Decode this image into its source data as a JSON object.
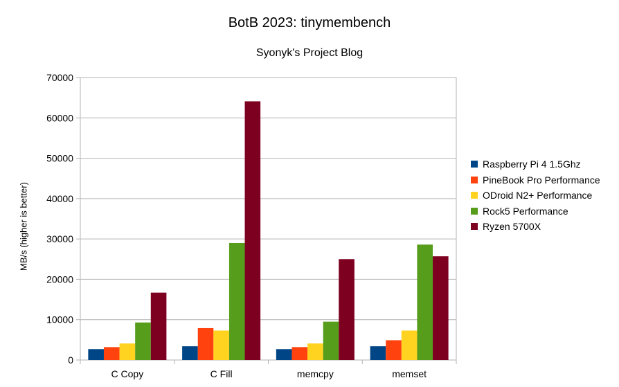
{
  "chart_data": {
    "type": "bar",
    "title": "BotB 2023: tinymembench",
    "subtitle": "Syonyk's Project Blog",
    "xlabel": "",
    "ylabel": "MB/s (higher is better)",
    "ylim": [
      0,
      70000
    ],
    "yticks": [
      0,
      10000,
      20000,
      30000,
      40000,
      50000,
      60000,
      70000
    ],
    "grid": true,
    "legend_position": "right",
    "categories": [
      "C Copy",
      "C Fill",
      "memcpy",
      "memset"
    ],
    "series": [
      {
        "name": "Raspberry Pi 4 1.5Ghz",
        "color": "#004586",
        "values": [
          2700,
          3400,
          2700,
          3400
        ]
      },
      {
        "name": "PineBook Pro Performance",
        "color": "#ff420e",
        "values": [
          3200,
          7900,
          3200,
          4900
        ]
      },
      {
        "name": "ODroid N2+ Performance",
        "color": "#ffd320",
        "values": [
          4100,
          7300,
          4100,
          7300
        ]
      },
      {
        "name": "Rock5 Performance",
        "color": "#579d1c",
        "values": [
          9300,
          29000,
          9500,
          28600
        ]
      },
      {
        "name": "Ryzen 5700X",
        "color": "#7e0021",
        "values": [
          16700,
          64100,
          25000,
          25700
        ]
      }
    ]
  }
}
